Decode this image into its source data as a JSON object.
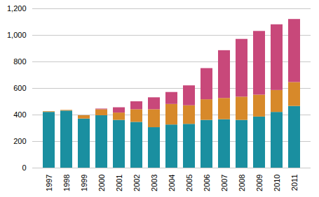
{
  "chart_data": {
    "type": "bar",
    "stacked": true,
    "grid": true,
    "categories": [
      "1997",
      "1998",
      "1999",
      "2000",
      "2001",
      "2002",
      "2003",
      "2004",
      "2005",
      "2006",
      "2007",
      "2008",
      "2009",
      "2010",
      "2011"
    ],
    "series": [
      {
        "color": "#1a8fa0",
        "values": [
          420,
          430,
          370,
          395,
          360,
          345,
          305,
          325,
          330,
          360,
          365,
          360,
          385,
          420,
          465
        ]
      },
      {
        "color": "#d7892a",
        "values": [
          5,
          5,
          25,
          45,
          55,
          95,
          135,
          155,
          140,
          155,
          160,
          175,
          165,
          165,
          180
        ]
      },
      {
        "color": "#c8487a",
        "values": [
          0,
          0,
          0,
          5,
          40,
          60,
          90,
          90,
          150,
          235,
          360,
          435,
          480,
          495,
          475
        ]
      }
    ],
    "ylim": [
      0,
      1200
    ],
    "yticks": [
      0,
      200,
      400,
      600,
      800,
      {
        "value": 1000,
        "label": "1,000"
      },
      {
        "value": 1200,
        "label": "1,200"
      }
    ]
  }
}
